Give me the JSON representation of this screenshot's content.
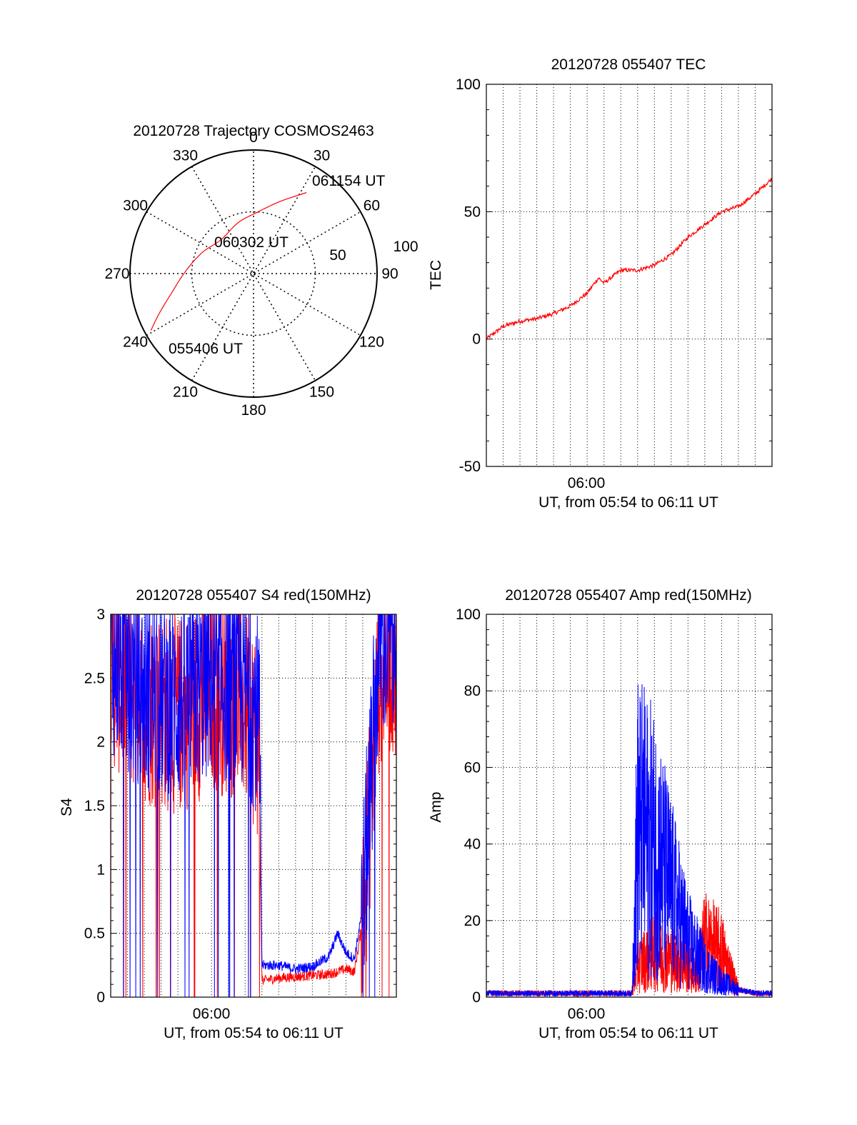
{
  "colors": {
    "red": "#ff0000",
    "blue": "#0000ff",
    "axis": "#000000",
    "grid": "#000000"
  },
  "chart_data": [
    {
      "id": "trajectory",
      "type": "polar",
      "title": "20120728 Trajectory COSMOS2463",
      "azimuth_labels": [
        "0",
        "30",
        "60",
        "90",
        "120",
        "150",
        "180",
        "210",
        "240",
        "270",
        "300",
        "330"
      ],
      "ring_labels": [
        "50",
        "100"
      ],
      "rlim": [
        0,
        100
      ],
      "series": [
        {
          "color": "red",
          "points": [
            {
              "az": 241,
              "r": 95
            },
            {
              "az": 247,
              "r": 83
            },
            {
              "az": 256,
              "r": 69
            },
            {
              "az": 272,
              "r": 55
            },
            {
              "az": 292,
              "r": 45
            },
            {
              "az": 316,
              "r": 38
            },
            {
              "az": 343,
              "r": 43
            },
            {
              "az": 2,
              "r": 49
            },
            {
              "az": 20,
              "r": 62
            },
            {
              "az": 33,
              "r": 78
            }
          ]
        }
      ],
      "annotations": [
        {
          "text": "061154 UT",
          "az": 33,
          "r": 78
        },
        {
          "text": "060302 UT",
          "az": 343,
          "r": 43
        },
        {
          "text": "055406 UT",
          "az": 241,
          "r": 95
        }
      ]
    },
    {
      "id": "tec",
      "type": "line",
      "title": "20120728 055407 TEC",
      "xlabel": "UT, from 05:54 to 06:11 UT",
      "ylabel": "TEC",
      "xlim": [
        "05:54",
        "06:11"
      ],
      "ylim": [
        -50,
        100
      ],
      "yticks": [
        "-50",
        "0",
        "50",
        "100"
      ],
      "xticks": [
        "06:00"
      ],
      "grid": true,
      "series": [
        {
          "color": "red",
          "x": [
            "05:54:00",
            "05:55:00",
            "05:56:00",
            "05:57:00",
            "05:58:00",
            "05:59:00",
            "06:00:00",
            "06:00:40",
            "06:01:00",
            "06:02:00",
            "06:02:30",
            "06:03:00",
            "06:04:00",
            "06:05:00",
            "06:06:00",
            "06:07:00",
            "06:08:00",
            "06:09:00",
            "06:10:00",
            "06:11:00"
          ],
          "y": [
            0,
            5,
            7,
            8,
            10,
            13,
            18,
            24,
            22,
            27,
            27,
            27,
            29,
            33,
            40,
            45,
            50,
            52,
            57,
            63
          ]
        }
      ]
    },
    {
      "id": "s4",
      "type": "line",
      "title": "20120728 055407 S4 red(150MHz)",
      "xlabel": "UT, from 05:54 to 06:11 UT",
      "ylabel": "S4",
      "xlim": [
        "05:54",
        "06:11"
      ],
      "ylim": [
        0,
        3
      ],
      "yticks": [
        "0",
        "0.5",
        "1",
        "1.5",
        "2",
        "2.5",
        "3"
      ],
      "xticks": [
        "06:00"
      ],
      "grid": true,
      "series": [
        {
          "color": "red",
          "x": [
            "05:54:00",
            "05:56:00",
            "05:58:00",
            "06:00:00",
            "06:02:00",
            "06:02:50",
            "06:03:00",
            "06:04:00",
            "06:05:00",
            "06:06:00",
            "06:07:00",
            "06:08:00",
            "06:08:30",
            "06:09:00",
            "06:10:00",
            "06:11:00"
          ],
          "y": [
            2.6,
            2.3,
            2.2,
            2.4,
            2.3,
            2.0,
            0.13,
            0.15,
            0.16,
            0.17,
            0.18,
            0.22,
            0.2,
            0.6,
            2.6,
            2.7
          ]
        },
        {
          "color": "blue",
          "x": [
            "05:54:00",
            "05:56:00",
            "05:58:00",
            "06:00:00",
            "06:02:00",
            "06:02:50",
            "06:03:00",
            "06:04:00",
            "06:05:00",
            "06:06:00",
            "06:07:00",
            "06:07:30",
            "06:08:00",
            "06:08:30",
            "06:09:00",
            "06:10:00",
            "06:11:00"
          ],
          "y": [
            2.7,
            2.4,
            2.3,
            2.5,
            2.4,
            2.2,
            0.25,
            0.25,
            0.22,
            0.24,
            0.32,
            0.5,
            0.35,
            0.3,
            0.7,
            2.8,
            2.8
          ]
        }
      ]
    },
    {
      "id": "amp",
      "type": "line",
      "title": "20120728 055407 Amp red(150MHz)",
      "xlabel": "UT, from 05:54 to 06:11 UT",
      "ylabel": "Amp",
      "xlim": [
        "05:54",
        "06:11"
      ],
      "ylim": [
        0,
        100
      ],
      "yticks": [
        "0",
        "20",
        "40",
        "60",
        "80",
        "100"
      ],
      "xticks": [
        "06:00"
      ],
      "grid": true,
      "series": [
        {
          "color": "red",
          "x": [
            "05:54:00",
            "05:58:00",
            "06:02:40",
            "06:03:00",
            "06:04:00",
            "06:05:00",
            "06:06:00",
            "06:06:30",
            "06:07:00",
            "06:08:00",
            "06:09:00",
            "06:10:00",
            "06:11:00"
          ],
          "y": [
            1,
            1,
            1,
            8,
            12,
            10,
            8,
            5,
            15,
            12,
            2,
            1,
            1
          ]
        },
        {
          "color": "blue",
          "x": [
            "05:54:00",
            "05:56:00",
            "05:58:00",
            "06:00:00",
            "06:02:40",
            "06:03:00",
            "06:04:00",
            "06:05:00",
            "06:06:00",
            "06:07:00",
            "06:08:00",
            "06:09:00",
            "06:10:00",
            "06:11:00"
          ],
          "y": [
            1,
            1,
            1,
            1,
            1,
            45,
            40,
            28,
            15,
            8,
            4,
            2,
            1,
            1
          ]
        }
      ]
    }
  ]
}
